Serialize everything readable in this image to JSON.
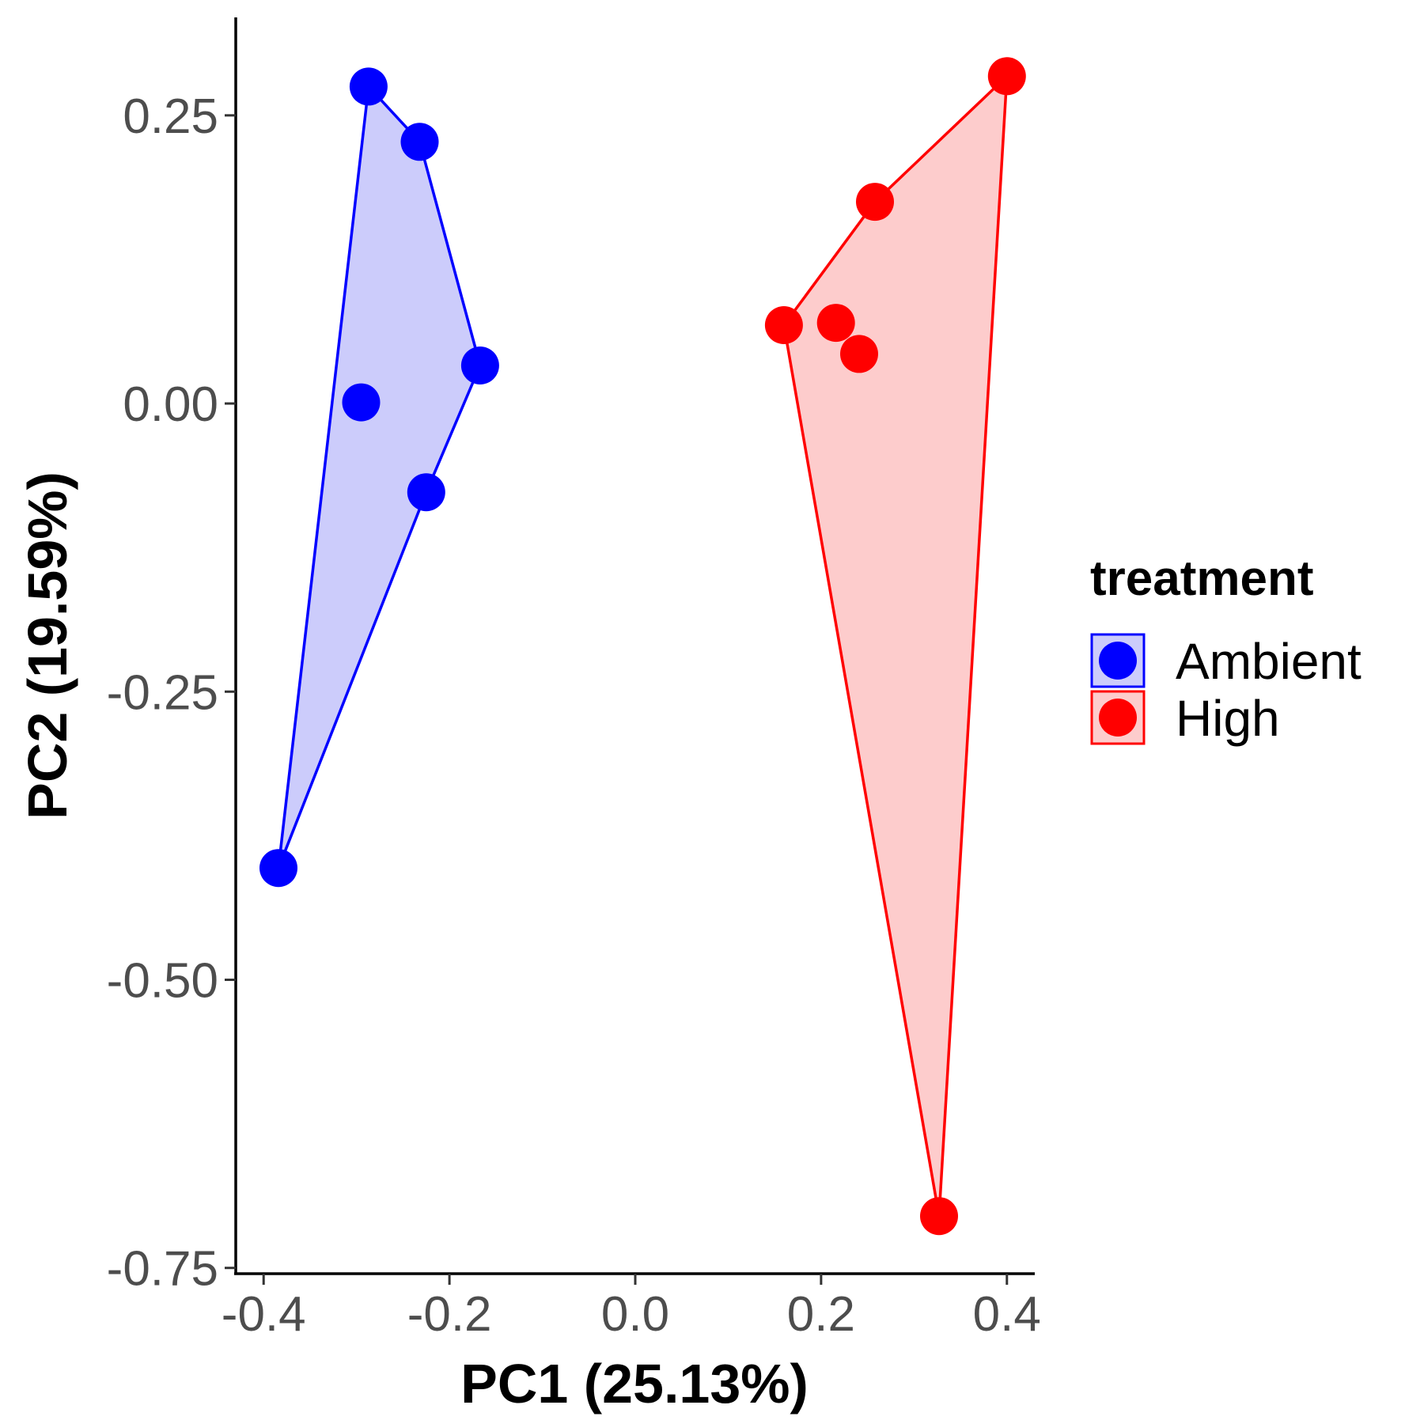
{
  "chart_data": {
    "type": "scatter",
    "xlabel": "PC1 (25.13%)",
    "ylabel": "PC2 (19.59%)",
    "xlim": [
      -0.43,
      0.43
    ],
    "ylim": [
      -0.755,
      0.335
    ],
    "x_ticks": [
      -0.4,
      -0.2,
      0.0,
      0.2,
      0.4
    ],
    "x_tick_labels": [
      "-0.4",
      "-0.2",
      "0.0",
      "0.2",
      "0.4"
    ],
    "y_ticks": [
      0.25,
      0.0,
      -0.25,
      -0.5,
      -0.75
    ],
    "y_tick_labels": [
      "0.25",
      "0.00",
      "-0.25",
      "-0.50",
      "-0.75"
    ],
    "grid": false,
    "legend": {
      "title": "treatment",
      "position": "right"
    },
    "series": [
      {
        "name": "Ambient",
        "color": "#0000ff",
        "fill": "#ccccfb",
        "points": [
          {
            "x": -0.287,
            "y": 0.275
          },
          {
            "x": -0.232,
            "y": 0.227
          },
          {
            "x": -0.167,
            "y": 0.033
          },
          {
            "x": -0.295,
            "y": 0.001
          },
          {
            "x": -0.225,
            "y": -0.077
          },
          {
            "x": -0.384,
            "y": -0.403
          }
        ],
        "hull": [
          0,
          1,
          2,
          4,
          5
        ]
      },
      {
        "name": "High",
        "color": "#ff0000",
        "fill": "#fdcccc",
        "points": [
          {
            "x": 0.4,
            "y": 0.284
          },
          {
            "x": 0.258,
            "y": 0.175
          },
          {
            "x": 0.16,
            "y": 0.068
          },
          {
            "x": 0.216,
            "y": 0.07
          },
          {
            "x": 0.241,
            "y": 0.043
          },
          {
            "x": 0.327,
            "y": -0.705
          }
        ],
        "hull": [
          0,
          1,
          2,
          5
        ]
      }
    ]
  }
}
